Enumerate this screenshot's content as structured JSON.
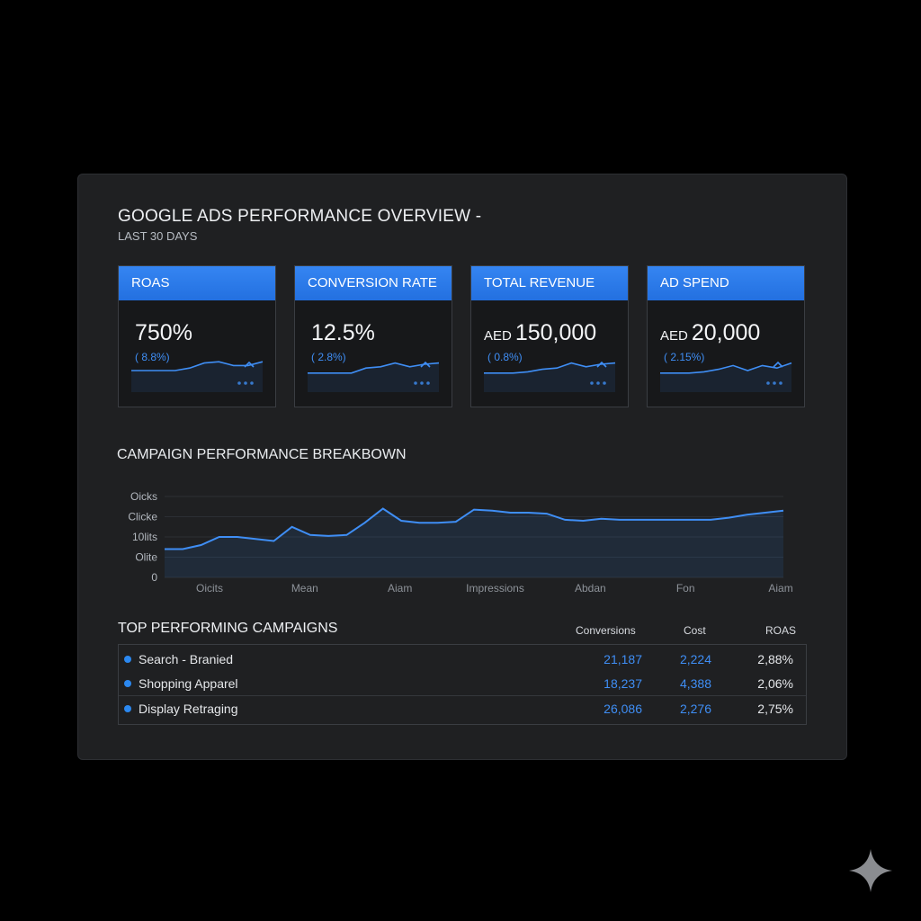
{
  "header": {
    "title": "GOOGLE ADS PERFORMANCE OVERVIEW -",
    "subtitle": "LAST 30 DAYS"
  },
  "kpis": [
    {
      "label": "ROAS",
      "currency": "",
      "value": "750%",
      "delta": "( 8.8%)",
      "spark": [
        0.5,
        0.5,
        0.5,
        0.5,
        0.6,
        0.8,
        0.85,
        0.7,
        0.7,
        0.85
      ]
    },
    {
      "label": "CONVERSION RATE",
      "currency": "",
      "value": "12.5%",
      "delta": "( 2.8%)",
      "spark": [
        0.4,
        0.4,
        0.4,
        0.4,
        0.6,
        0.65,
        0.8,
        0.65,
        0.75,
        0.8
      ]
    },
    {
      "label": "TOTAL REVENUE",
      "currency": "AED",
      "value": "150,000",
      "delta": "( 0.8%)",
      "spark": [
        0.4,
        0.4,
        0.4,
        0.45,
        0.55,
        0.6,
        0.8,
        0.65,
        0.75,
        0.8
      ]
    },
    {
      "label": "AD SPEND",
      "currency": "AED",
      "value": "20,000",
      "delta": "( 2.15%)",
      "spark": [
        0.4,
        0.4,
        0.4,
        0.45,
        0.55,
        0.7,
        0.5,
        0.7,
        0.6,
        0.8
      ]
    }
  ],
  "breakdown": {
    "title": "CAMPAIGN PERFORMANCE BREAKBOWN"
  },
  "chart_data": {
    "type": "line",
    "title": "",
    "y_tick_labels": [
      "Oicks",
      "Clicke",
      "10lits",
      "Olite",
      "0"
    ],
    "x_tick_labels": [
      "Oicits",
      "Mean",
      "Aiam",
      "Impressions",
      "Abdan",
      "Fon",
      "Aiam"
    ],
    "series": [
      {
        "values": [
          1.4,
          1.4,
          1.6,
          2.0,
          2.0,
          1.9,
          1.8,
          2.5,
          2.1,
          2.05,
          2.1,
          2.7,
          3.4,
          2.8,
          2.7,
          2.7,
          2.75,
          3.35,
          3.3,
          3.2,
          3.2,
          3.15,
          2.85,
          2.8,
          2.9,
          2.85,
          2.85,
          2.85,
          2.85,
          2.85,
          2.85,
          2.95,
          3.1,
          3.2,
          3.3
        ]
      }
    ],
    "ylim": [
      0,
      4
    ]
  },
  "top": {
    "title": "TOP PERFORMING CAMPAIGNS",
    "columns": {
      "conversions": "Conversions",
      "cost": "Cost",
      "roas": "ROAS"
    },
    "rows": [
      {
        "name": "Search - Branied",
        "conversions": "21,187",
        "cost": "2,224",
        "roas": "2,88%"
      },
      {
        "name": "Shopping Apparel",
        "conversions": "18,237",
        "cost": "4,388",
        "roas": "2,06%"
      },
      {
        "name": "Display Retraging",
        "conversions": "26,086",
        "cost": "2,276",
        "roas": "2,75%"
      }
    ]
  },
  "colors": {
    "accent": "#2b7bea",
    "line": "#3f8ef5",
    "panel": "#1f2022",
    "background": "#000000"
  },
  "icons": {
    "watermark": "sparkle-icon"
  }
}
